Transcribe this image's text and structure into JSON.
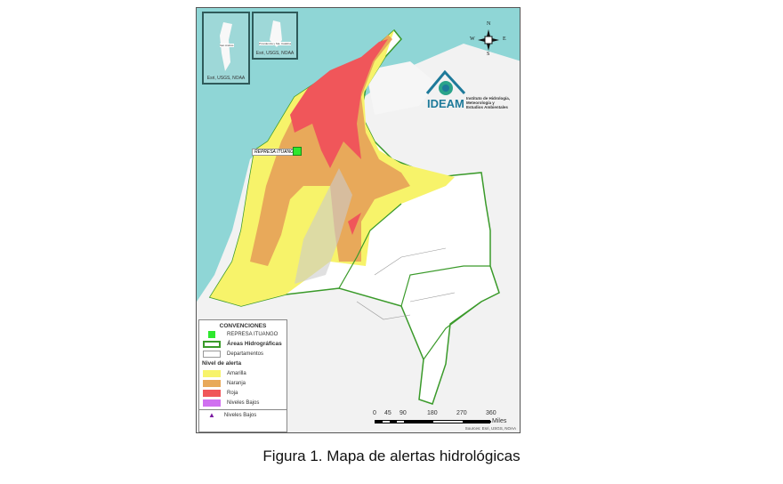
{
  "map": {
    "insets": [
      {
        "label": "San Andrés",
        "source": "Esri, USGS, NOAA"
      },
      {
        "label": "Providencia y Sta. Catalina",
        "source": "Esri, USGS, NOAA"
      }
    ],
    "compass": {
      "n": "N",
      "s": "S",
      "e": "E",
      "w": "W"
    },
    "logo": {
      "name": "IDEAM",
      "institution": "Instituto de Hidrología, Meteorología y Estudios Ambientales"
    },
    "dam_label": "REPRESA ITUANGO",
    "legend": {
      "title": "CONVENCIONES",
      "items": [
        {
          "label": "REPRESA ITUANGO",
          "color": "#2ee82e"
        },
        {
          "label": "Áreas Hidrográficas",
          "color": "#3a9a2a"
        },
        {
          "label": "Departamentos",
          "color": "#ffffff"
        }
      ],
      "alert_heading": "Nivel de alerta",
      "alert_levels": [
        {
          "label": "Amarilla",
          "color": "#f7f36a"
        },
        {
          "label": "Naranja",
          "color": "#e8a95a"
        },
        {
          "label": "Roja",
          "color": "#f0565a"
        },
        {
          "label": "Niveles Bajos",
          "color": "#d070f0"
        }
      ],
      "low_levels_marker": {
        "label": "Niveles Bajos",
        "color": "#7a1aa0"
      }
    },
    "scale": {
      "ticks": [
        "0",
        "45",
        "90",
        "180",
        "270",
        "360"
      ],
      "unit": "Miles"
    },
    "sources": "Sources: Esri, USGS, NOAA"
  },
  "caption": "Figura 1. Mapa de alertas hidrológicas"
}
